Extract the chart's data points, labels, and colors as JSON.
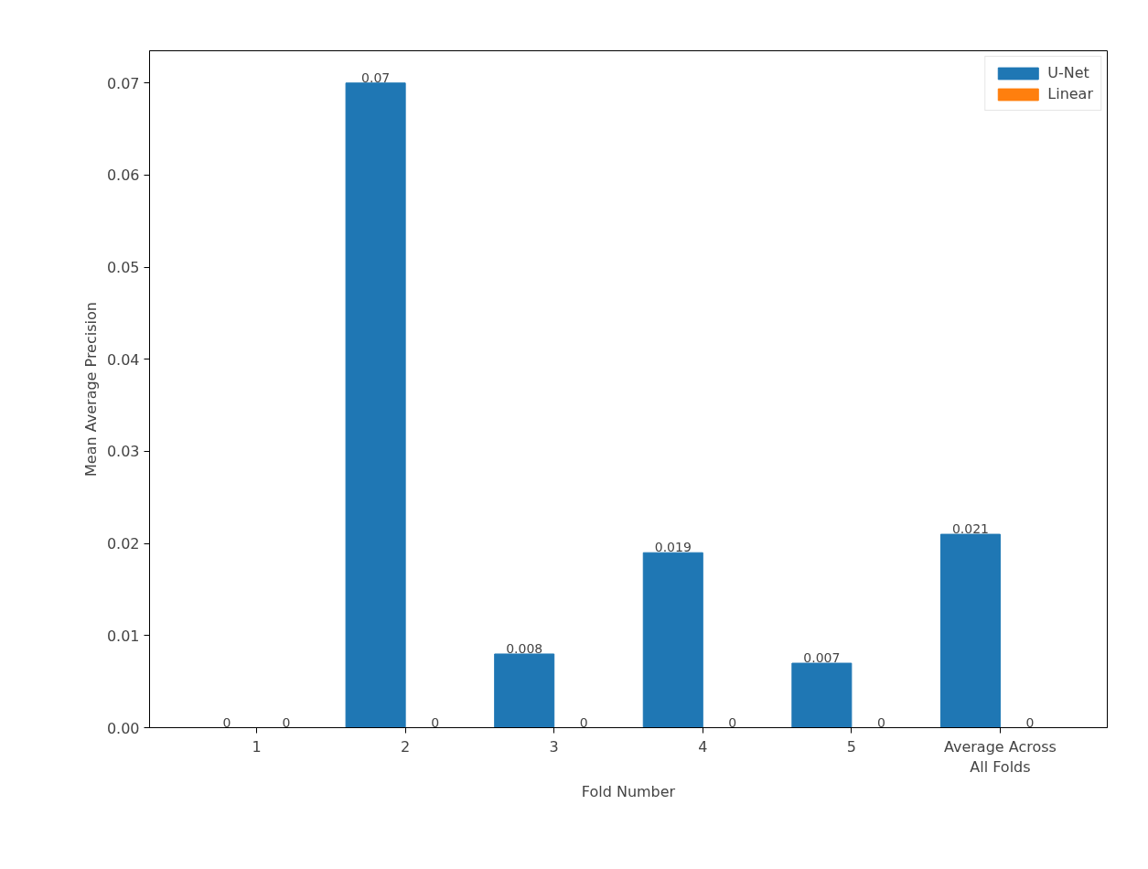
{
  "chart_data": {
    "type": "bar",
    "xlabel": "Fold Number",
    "ylabel": "Mean Average Precision",
    "categories": [
      "1",
      "2",
      "3",
      "4",
      "5",
      "Average Across\nAll Folds"
    ],
    "series": [
      {
        "name": "U-Net",
        "color": "#1f77b4",
        "values": [
          0,
          0.07,
          0.008,
          0.019,
          0.007,
          0.021
        ]
      },
      {
        "name": "Linear",
        "color": "#ff7f0e",
        "values": [
          0,
          0,
          0,
          0,
          0,
          0
        ]
      }
    ],
    "ylim": [
      0,
      0.0735
    ],
    "yticks": [
      {
        "value": 0,
        "label": "0.00"
      },
      {
        "value": 0.01,
        "label": "0.01"
      },
      {
        "value": 0.02,
        "label": "0.02"
      },
      {
        "value": 0.03,
        "label": "0.03"
      },
      {
        "value": 0.04,
        "label": "0.04"
      },
      {
        "value": 0.05,
        "label": "0.05"
      },
      {
        "value": 0.06,
        "label": "0.06"
      },
      {
        "value": 0.07,
        "label": "0.07"
      }
    ],
    "data_labels": true,
    "legend": "top right",
    "grid": false
  }
}
